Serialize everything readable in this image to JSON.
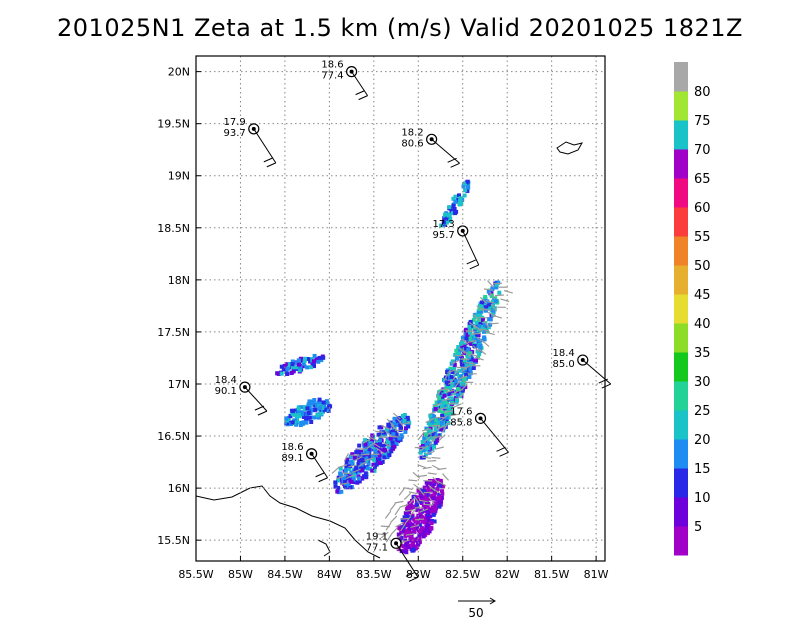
{
  "title": "201025N1  Zeta at 1.5 km (m/s)  Valid 20201025  1821Z",
  "chart_data": {
    "type": "map",
    "grid": true,
    "lon_range": [
      -85.5,
      -80.9
    ],
    "lat_range": [
      15.3,
      20.15
    ],
    "x_ticks": [
      "85.5W",
      "85W",
      "84.5W",
      "84W",
      "83.5W",
      "83W",
      "82.5W",
      "82W",
      "81.5W",
      "81W"
    ],
    "x_tick_values": [
      -85.5,
      -85,
      -84.5,
      -84,
      -83.5,
      -83,
      -82.5,
      -82,
      -81.5,
      -81
    ],
    "y_ticks": [
      "15.5N",
      "16N",
      "16.5N",
      "17N",
      "17.5N",
      "18N",
      "18.5N",
      "19N",
      "19.5N",
      "20N"
    ],
    "y_tick_values": [
      15.5,
      16,
      16.5,
      17,
      17.5,
      18,
      18.5,
      19,
      19.5,
      20
    ],
    "colorbar": {
      "labels": [
        "5",
        "10",
        "15",
        "20",
        "25",
        "30",
        "35",
        "40",
        "45",
        "50",
        "55",
        "60",
        "65",
        "70",
        "75",
        "80"
      ],
      "colors": [
        "#a000c8",
        "#6e00dc",
        "#2828e6",
        "#1e8cf0",
        "#19c3c8",
        "#23d296",
        "#14c81e",
        "#8cdc28",
        "#e6dc32",
        "#e6af2d",
        "#f08228",
        "#fa3c3c",
        "#f00a82",
        "#a000c8",
        "#19c3c8",
        "#a0e632",
        "#a8a8a8"
      ]
    },
    "observations": [
      {
        "top": "18.6",
        "bottom": "77.4",
        "lon": -83.75,
        "lat": 20.0
      },
      {
        "top": "17.9",
        "bottom": "93.7",
        "lon": -84.85,
        "lat": 19.45
      },
      {
        "top": "18.2",
        "bottom": "80.6",
        "lon": -82.85,
        "lat": 19.35
      },
      {
        "top": "17.3",
        "bottom": "95.7",
        "lon": -82.5,
        "lat": 18.47
      },
      {
        "top": "18.4",
        "bottom": "90.1",
        "lon": -84.95,
        "lat": 16.97
      },
      {
        "top": "17.6",
        "bottom": "85.8",
        "lon": -82.3,
        "lat": 16.67
      },
      {
        "top": "18.6",
        "bottom": "89.1",
        "lon": -84.2,
        "lat": 16.33
      },
      {
        "top": "19.1",
        "bottom": "77.1",
        "lon": -83.25,
        "lat": 15.47
      },
      {
        "top": "18.4",
        "bottom": "85.0",
        "lon": -81.15,
        "lat": 17.23
      }
    ],
    "reference_vector_label": "50"
  }
}
